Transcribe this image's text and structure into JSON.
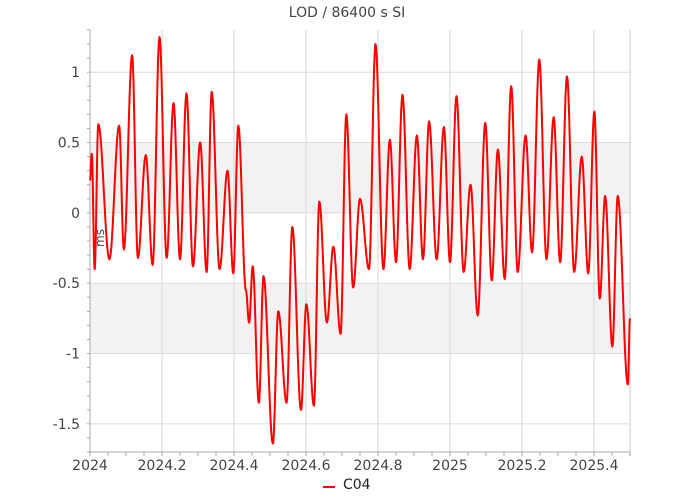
{
  "chart_data": {
    "type": "line",
    "title": "LOD / 86400 s SI",
    "ylabel": "ms",
    "xlim": [
      2024.0,
      2025.5
    ],
    "ylim": [
      -1.7,
      1.3
    ],
    "x_ticks": [
      2024,
      2024.2,
      2024.4,
      2024.6,
      2024.8,
      2025,
      2025.2,
      2025.4
    ],
    "x_tick_labels": [
      "2024",
      "2024.2",
      "2024.4",
      "2024.6",
      "2024.8",
      "2025",
      "2025.2",
      "2025.4"
    ],
    "y_ticks": [
      1,
      0.5,
      0,
      -0.5,
      -1,
      -1.5
    ],
    "y_tick_labels": [
      "1",
      "0.5",
      "0",
      "-0.5",
      "-1",
      "-1.5"
    ],
    "shaded_bands": [
      [
        0,
        0.5
      ],
      [
        -1,
        -0.5
      ]
    ],
    "grid": true,
    "legend_position": "bottom-center",
    "series": [
      {
        "name": "C04",
        "color": "#ff0000",
        "peaks": [
          [
            2024.005,
            0.42
          ],
          [
            2024.023,
            0.63
          ],
          [
            2024.081,
            0.62
          ],
          [
            2024.117,
            1.12
          ],
          [
            2024.155,
            0.41
          ],
          [
            2024.193,
            1.25
          ],
          [
            2024.232,
            0.78
          ],
          [
            2024.268,
            0.85
          ],
          [
            2024.306,
            0.5
          ],
          [
            2024.338,
            0.86
          ],
          [
            2024.382,
            0.3
          ],
          [
            2024.412,
            0.62
          ],
          [
            2024.452,
            -0.38
          ],
          [
            2024.482,
            -0.45
          ],
          [
            2024.523,
            -0.7
          ],
          [
            2024.562,
            -0.1
          ],
          [
            2024.601,
            -0.65
          ],
          [
            2024.637,
            0.08
          ],
          [
            2024.676,
            -0.24
          ],
          [
            2024.712,
            0.7
          ],
          [
            2024.75,
            0.1
          ],
          [
            2024.793,
            1.2
          ],
          [
            2024.833,
            0.52
          ],
          [
            2024.868,
            0.84
          ],
          [
            2024.908,
            0.55
          ],
          [
            2024.942,
            0.65
          ],
          [
            2024.983,
            0.61
          ],
          [
            2025.018,
            0.83
          ],
          [
            2025.057,
            0.2
          ],
          [
            2025.098,
            0.64
          ],
          [
            2025.133,
            0.45
          ],
          [
            2025.17,
            0.9
          ],
          [
            2025.21,
            0.55
          ],
          [
            2025.248,
            1.09
          ],
          [
            2025.288,
            0.68
          ],
          [
            2025.325,
            0.97
          ],
          [
            2025.366,
            0.4
          ],
          [
            2025.401,
            0.72
          ],
          [
            2025.431,
            0.12
          ],
          [
            2025.466,
            0.12
          ]
        ],
        "troughs": [
          [
            2024.013,
            -0.4
          ],
          [
            2024.054,
            -0.33
          ],
          [
            2024.094,
            -0.26
          ],
          [
            2024.133,
            -0.32
          ],
          [
            2024.174,
            -0.37
          ],
          [
            2024.213,
            -0.32
          ],
          [
            2024.25,
            -0.33
          ],
          [
            2024.286,
            -0.38
          ],
          [
            2024.324,
            -0.42
          ],
          [
            2024.36,
            -0.4
          ],
          [
            2024.398,
            -0.43
          ],
          [
            2024.433,
            -0.55
          ],
          [
            2024.442,
            -0.78
          ],
          [
            2024.469,
            -1.35
          ],
          [
            2024.508,
            -1.64
          ],
          [
            2024.546,
            -1.35
          ],
          [
            2024.586,
            -1.4
          ],
          [
            2024.622,
            -1.37
          ],
          [
            2024.658,
            -0.78
          ],
          [
            2024.696,
            -0.86
          ],
          [
            2024.731,
            -0.53
          ],
          [
            2024.775,
            -0.4
          ],
          [
            2024.815,
            -0.4
          ],
          [
            2024.85,
            -0.35
          ],
          [
            2024.888,
            -0.4
          ],
          [
            2024.925,
            -0.33
          ],
          [
            2024.963,
            -0.33
          ],
          [
            2025.0,
            -0.35
          ],
          [
            2025.038,
            -0.42
          ],
          [
            2025.077,
            -0.73
          ],
          [
            2025.116,
            -0.48
          ],
          [
            2025.152,
            -0.47
          ],
          [
            2025.188,
            -0.42
          ],
          [
            2025.228,
            -0.28
          ],
          [
            2025.268,
            -0.33
          ],
          [
            2025.306,
            -0.35
          ],
          [
            2025.345,
            -0.42
          ],
          [
            2025.384,
            -0.43
          ],
          [
            2025.416,
            -0.61
          ],
          [
            2025.451,
            -0.95
          ],
          [
            2025.494,
            -1.22
          ]
        ],
        "end_point": [
          2025.5,
          -0.75
        ]
      }
    ]
  }
}
